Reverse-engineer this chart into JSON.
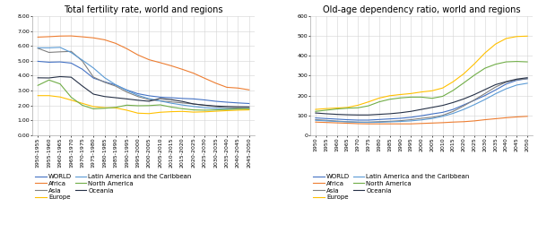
{
  "tfr_title": "Total fertility rate, world and regions",
  "oadr_title": "Old-age dependency ratio, world and regions",
  "tfr_ylim": [
    0,
    8.0
  ],
  "tfr_yticks": [
    0,
    1.0,
    2.0,
    3.0,
    4.0,
    5.0,
    6.0,
    7.0,
    8.0
  ],
  "oadr_ylim": [
    0,
    600
  ],
  "oadr_yticks": [
    0,
    100,
    200,
    300,
    400,
    500,
    600
  ],
  "x_labels_tfr": [
    "1950-1955",
    "1955-1960",
    "1960-1965",
    "1965-1970",
    "1970-1975",
    "1975-1980",
    "1980-1985",
    "1985-1990",
    "1990-1995",
    "1995-2000",
    "2000-2005",
    "2005-2010",
    "2010-2015",
    "2015-2020",
    "2020-2025",
    "2025-2030",
    "2030-2035",
    "2035-2040",
    "2040-2045",
    "2045-2050"
  ],
  "x_labels_oadr": [
    "1950",
    "1955",
    "1960",
    "1965",
    "1970",
    "1975",
    "1980",
    "1985",
    "1990",
    "1995",
    "2000",
    "2005",
    "2010",
    "2015",
    "2020",
    "2025",
    "2030",
    "2035",
    "2040",
    "2045",
    "2050"
  ],
  "series": {
    "WORLD": {
      "color": "#4472C4",
      "tfr": [
        4.97,
        4.91,
        4.93,
        4.85,
        4.44,
        3.84,
        3.59,
        3.38,
        3.04,
        2.79,
        2.65,
        2.56,
        2.52,
        2.47,
        2.44,
        2.37,
        2.28,
        2.22,
        2.17,
        2.13
      ],
      "oadr": [
        87,
        84,
        81,
        78,
        76,
        76,
        79,
        82,
        85,
        90,
        98,
        107,
        115,
        130,
        153,
        176,
        200,
        228,
        258,
        277,
        285
      ]
    },
    "Africa": {
      "color": "#ED7D31",
      "tfr": [
        6.6,
        6.63,
        6.67,
        6.68,
        6.62,
        6.55,
        6.42,
        6.18,
        5.82,
        5.4,
        5.08,
        4.88,
        4.67,
        4.43,
        4.17,
        3.83,
        3.5,
        3.22,
        3.17,
        3.05
      ],
      "oadr": [
        66,
        64,
        62,
        60,
        58,
        57,
        57,
        57,
        57,
        57,
        59,
        61,
        63,
        66,
        68,
        72,
        78,
        83,
        88,
        92,
        95
      ]
    },
    "Asia": {
      "color": "#808080",
      "tfr": [
        5.85,
        5.57,
        5.61,
        5.64,
        4.99,
        3.91,
        3.56,
        3.3,
        2.9,
        2.6,
        2.39,
        2.31,
        2.24,
        2.17,
        2.1,
        2.01,
        1.91,
        1.85,
        1.82,
        1.8
      ],
      "oadr": [
        78,
        75,
        71,
        68,
        66,
        66,
        68,
        70,
        73,
        78,
        85,
        90,
        100,
        120,
        148,
        178,
        210,
        243,
        268,
        280,
        285
      ]
    },
    "Europe": {
      "color": "#FFC000",
      "tfr": [
        2.66,
        2.66,
        2.57,
        2.36,
        2.14,
        1.92,
        1.85,
        1.83,
        1.68,
        1.48,
        1.45,
        1.54,
        1.58,
        1.6,
        1.55,
        1.57,
        1.61,
        1.65,
        1.68,
        1.7
      ],
      "oadr": [
        130,
        134,
        137,
        140,
        151,
        168,
        187,
        199,
        205,
        210,
        218,
        224,
        238,
        270,
        310,
        360,
        415,
        460,
        488,
        498,
        500
      ]
    },
    "Latin America and the Caribbean": {
      "color": "#5B9BD5",
      "tfr": [
        5.88,
        5.88,
        5.91,
        5.56,
        5.05,
        4.52,
        3.87,
        3.39,
        3.01,
        2.68,
        2.46,
        2.3,
        2.15,
        2.03,
        1.93,
        1.85,
        1.8,
        1.78,
        1.77,
        1.77
      ],
      "oadr": [
        75,
        72,
        69,
        67,
        65,
        64,
        65,
        67,
        69,
        72,
        77,
        84,
        95,
        110,
        130,
        154,
        180,
        209,
        234,
        253,
        262
      ]
    },
    "North America": {
      "color": "#70AD47",
      "tfr": [
        3.35,
        3.71,
        3.45,
        2.55,
        2.01,
        1.77,
        1.81,
        1.87,
        2.02,
        1.98,
        1.99,
        2.04,
        1.89,
        1.78,
        1.7,
        1.68,
        1.7,
        1.73,
        1.76,
        1.78
      ],
      "oadr": [
        120,
        126,
        132,
        136,
        138,
        148,
        168,
        181,
        188,
        192,
        192,
        186,
        196,
        226,
        264,
        303,
        338,
        358,
        370,
        372,
        370
      ]
    },
    "Oceania": {
      "color": "#263147",
      "tfr": [
        3.86,
        3.85,
        3.94,
        3.9,
        3.31,
        2.76,
        2.6,
        2.52,
        2.44,
        2.35,
        2.28,
        2.47,
        2.39,
        2.27,
        2.1,
        2.02,
        1.96,
        1.93,
        1.91,
        1.9
      ],
      "oadr": [
        112,
        108,
        105,
        103,
        102,
        102,
        105,
        108,
        113,
        120,
        130,
        140,
        150,
        165,
        183,
        205,
        230,
        255,
        270,
        283,
        290
      ]
    }
  },
  "legend_col1": [
    "WORLD",
    "Asia",
    "Latin America and the Caribbean",
    "Oceania"
  ],
  "legend_col2": [
    "Africa",
    "Europe",
    "North America"
  ],
  "background_color": "#FFFFFF",
  "grid_color": "#D3D3D3",
  "title_fontsize": 7,
  "tick_fontsize": 4.5,
  "legend_fontsize": 5.0,
  "line_width": 0.8
}
